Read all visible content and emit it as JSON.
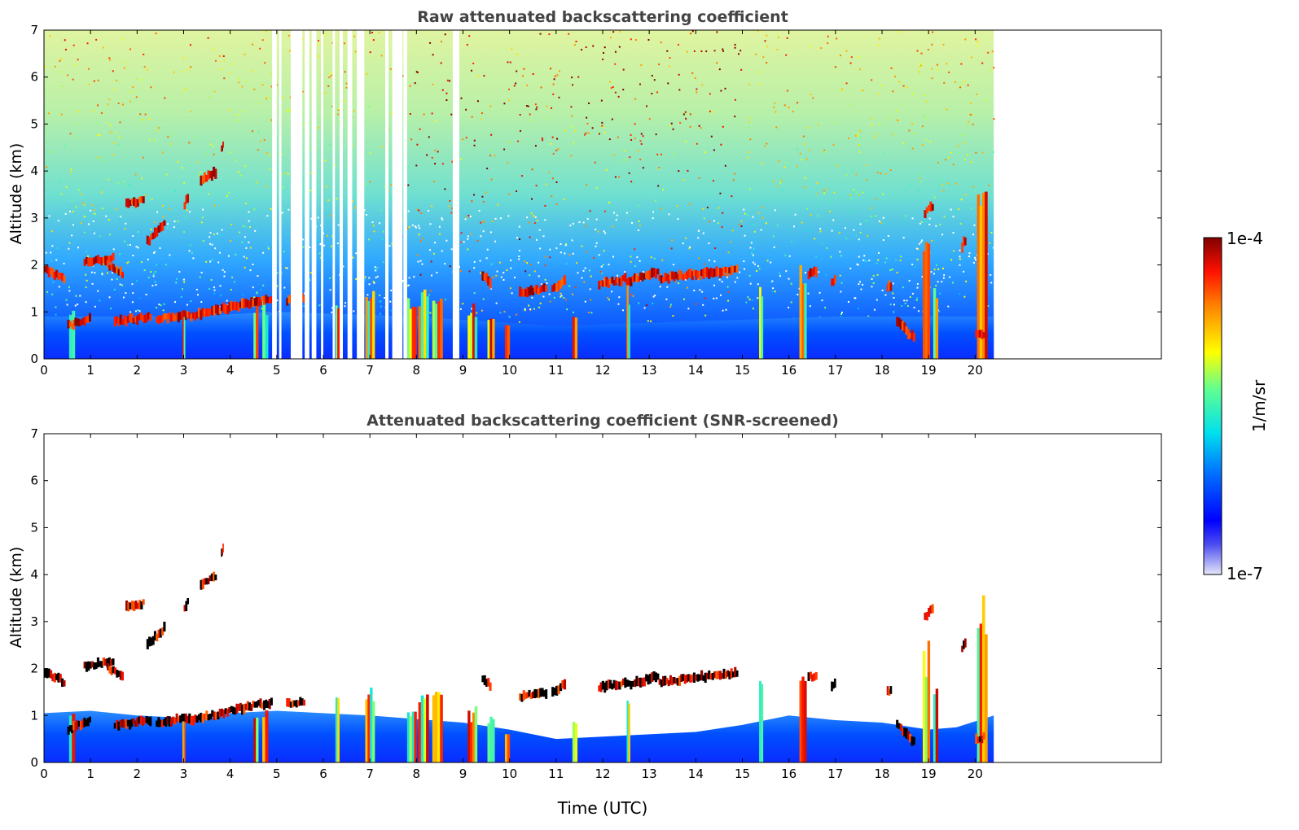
{
  "chart_data": [
    {
      "type": "heatmap",
      "title": "Raw attenuated backscattering coefficient",
      "xlabel": "",
      "ylabel": "Altitude (km)",
      "xlim": [
        0,
        24
      ],
      "ylim": [
        0,
        7
      ],
      "x_ticks": [
        "0",
        "1",
        "2",
        "3",
        "4",
        "5",
        "6",
        "7",
        "8",
        "9",
        "10",
        "11",
        "12",
        "13",
        "14",
        "15",
        "16",
        "17",
        "18",
        "19",
        "20"
      ],
      "y_ticks": [
        "0",
        "1",
        "2",
        "3",
        "4",
        "5",
        "6",
        "7"
      ],
      "data_end_time": 20.4,
      "screened": false,
      "missing_time_bands": [
        [
          4.9,
          5.0
        ],
        [
          5.05,
          5.1
        ],
        [
          5.3,
          5.55
        ],
        [
          5.6,
          5.7
        ],
        [
          5.75,
          5.85
        ],
        [
          5.95,
          6.0
        ],
        [
          6.2,
          6.25
        ],
        [
          6.35,
          6.42
        ],
        [
          6.52,
          6.62
        ],
        [
          6.72,
          6.88
        ],
        [
          7.33,
          7.4
        ],
        [
          7.48,
          7.7
        ],
        [
          7.72,
          7.8
        ],
        [
          8.78,
          8.92
        ]
      ],
      "cloud_layers": [
        {
          "t0": 0.0,
          "t1": 0.45,
          "a0": 1.9,
          "a1": 1.7
        },
        {
          "t0": 0.85,
          "t1": 1.5,
          "a0": 2.05,
          "a1": 2.15
        },
        {
          "t0": 1.35,
          "t1": 1.7,
          "a0": 2.0,
          "a1": 1.8
        },
        {
          "t0": 1.75,
          "t1": 2.15,
          "a0": 3.3,
          "a1": 3.4
        },
        {
          "t0": 2.2,
          "t1": 2.6,
          "a0": 2.5,
          "a1": 2.9
        },
        {
          "t0": 3.35,
          "t1": 3.7,
          "a0": 3.8,
          "a1": 4.0
        },
        {
          "t0": 3.8,
          "t1": 3.85,
          "a0": 4.45,
          "a1": 4.6
        },
        {
          "t0": 3.0,
          "t1": 3.1,
          "a0": 3.3,
          "a1": 3.5
        },
        {
          "t0": 0.5,
          "t1": 1.0,
          "a0": 0.7,
          "a1": 0.9
        },
        {
          "t0": 1.5,
          "t1": 2.3,
          "a0": 0.8,
          "a1": 0.9
        },
        {
          "t0": 2.4,
          "t1": 3.1,
          "a0": 0.85,
          "a1": 0.95
        },
        {
          "t0": 3.1,
          "t1": 4.0,
          "a0": 0.9,
          "a1": 1.1
        },
        {
          "t0": 4.0,
          "t1": 4.9,
          "a0": 1.1,
          "a1": 1.3
        },
        {
          "t0": 5.2,
          "t1": 5.6,
          "a0": 1.25,
          "a1": 1.3
        },
        {
          "t0": 9.4,
          "t1": 9.6,
          "a0": 1.8,
          "a1": 1.6
        },
        {
          "t0": 10.2,
          "t1": 10.8,
          "a0": 1.4,
          "a1": 1.5
        },
        {
          "t0": 10.9,
          "t1": 11.2,
          "a0": 1.5,
          "a1": 1.7
        },
        {
          "t0": 11.9,
          "t1": 12.5,
          "a0": 1.6,
          "a1": 1.7
        },
        {
          "t0": 12.5,
          "t1": 13.2,
          "a0": 1.65,
          "a1": 1.85
        },
        {
          "t0": 13.2,
          "t1": 13.9,
          "a0": 1.7,
          "a1": 1.8
        },
        {
          "t0": 13.9,
          "t1": 14.9,
          "a0": 1.8,
          "a1": 1.9
        },
        {
          "t0": 16.4,
          "t1": 16.6,
          "a0": 1.8,
          "a1": 1.9
        },
        {
          "t0": 16.9,
          "t1": 17.0,
          "a0": 1.6,
          "a1": 1.7
        },
        {
          "t0": 18.1,
          "t1": 18.2,
          "a0": 1.5,
          "a1": 1.6
        },
        {
          "t0": 18.3,
          "t1": 18.7,
          "a0": 0.8,
          "a1": 0.4
        },
        {
          "t0": 18.9,
          "t1": 19.1,
          "a0": 3.1,
          "a1": 3.3
        },
        {
          "t0": 19.7,
          "t1": 19.8,
          "a0": 2.4,
          "a1": 2.6
        },
        {
          "t0": 20.0,
          "t1": 20.2,
          "a0": 0.5,
          "a1": 0.55
        }
      ],
      "precip_shafts": [
        {
          "t": 0.6,
          "w": 0.12,
          "top": 1.1
        },
        {
          "t": 3.0,
          "w": 0.05,
          "top": 1.0
        },
        {
          "t": 4.55,
          "w": 0.1,
          "top": 1.2
        },
        {
          "t": 4.75,
          "w": 0.12,
          "top": 1.3
        },
        {
          "t": 6.3,
          "w": 0.08,
          "top": 1.4
        },
        {
          "t": 7.0,
          "w": 0.2,
          "top": 1.6
        },
        {
          "t": 7.9,
          "w": 0.2,
          "top": 1.4
        },
        {
          "t": 8.15,
          "w": 0.22,
          "top": 1.5
        },
        {
          "t": 8.45,
          "w": 0.22,
          "top": 1.6
        },
        {
          "t": 9.2,
          "w": 0.2,
          "top": 1.2
        },
        {
          "t": 9.6,
          "w": 0.15,
          "top": 1.0
        },
        {
          "t": 9.95,
          "w": 0.1,
          "top": 0.8
        },
        {
          "t": 11.4,
          "w": 0.1,
          "top": 1.0
        },
        {
          "t": 12.55,
          "w": 0.07,
          "top": 1.6
        },
        {
          "t": 15.4,
          "w": 0.08,
          "top": 1.9
        },
        {
          "t": 16.3,
          "w": 0.15,
          "top": 2.0
        },
        {
          "t": 18.95,
          "w": 0.15,
          "top": 2.6
        },
        {
          "t": 19.15,
          "w": 0.1,
          "top": 1.8
        },
        {
          "t": 20.15,
          "w": 0.22,
          "top": 3.7
        }
      ]
    },
    {
      "type": "heatmap",
      "title": "Attenuated backscattering coefficient (SNR-screened)",
      "xlabel": "Time (UTC)",
      "ylabel": "Altitude (km)",
      "xlim": [
        0,
        24
      ],
      "ylim": [
        0,
        7
      ],
      "x_ticks": [
        "0",
        "1",
        "2",
        "3",
        "4",
        "5",
        "6",
        "7",
        "8",
        "9",
        "10",
        "11",
        "12",
        "13",
        "14",
        "15",
        "16",
        "17",
        "18",
        "19",
        "20"
      ],
      "y_ticks": [
        "0",
        "1",
        "2",
        "3",
        "4",
        "5",
        "6",
        "7"
      ],
      "data_end_time": 20.4,
      "screened": true,
      "boundary_layer_top": [
        [
          0.0,
          1.05
        ],
        [
          1.0,
          1.1
        ],
        [
          2.0,
          1.0
        ],
        [
          3.0,
          0.95
        ],
        [
          4.0,
          1.05
        ],
        [
          5.0,
          1.1
        ],
        [
          7.0,
          1.0
        ],
        [
          9.0,
          0.85
        ],
        [
          10.0,
          0.7
        ],
        [
          11.0,
          0.5
        ],
        [
          12.0,
          0.55
        ],
        [
          13.0,
          0.6
        ],
        [
          14.0,
          0.65
        ],
        [
          15.0,
          0.8
        ],
        [
          16.0,
          1.0
        ],
        [
          17.0,
          0.9
        ],
        [
          18.0,
          0.85
        ],
        [
          19.0,
          0.7
        ],
        [
          19.6,
          0.75
        ],
        [
          20.4,
          1.0
        ]
      ]
    }
  ],
  "colorbar": {
    "label": "1/m/sr",
    "max_label": "1e-4",
    "min_label": "1e-7",
    "scale": "log",
    "colormap": "jet"
  }
}
